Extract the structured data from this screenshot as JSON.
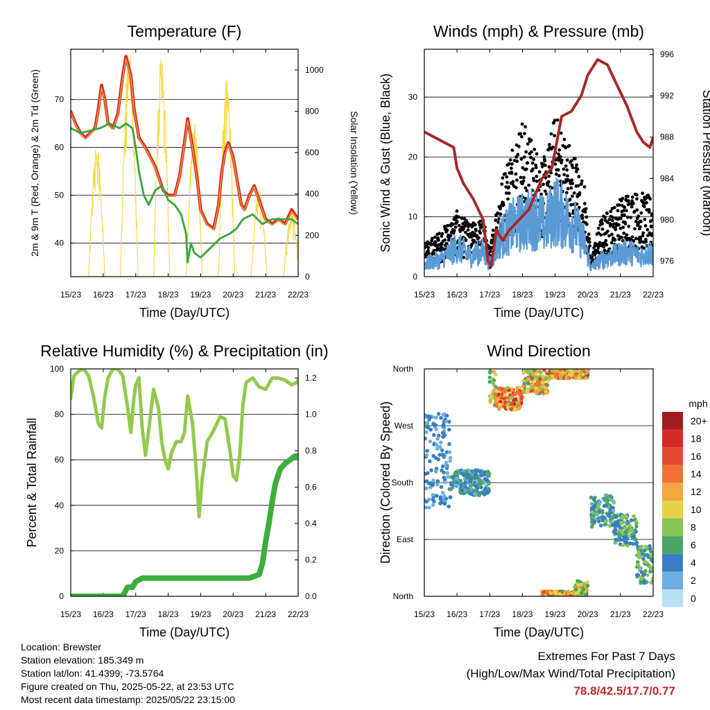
{
  "chart_data": [
    {
      "id": "temperature",
      "type": "line",
      "title": "Temperature (F)",
      "xlabel": "Time (Day/UTC)",
      "ylabel_left": "2m & 9m T (Red, Orange) & 2m Td (Green)",
      "ylabel_right": "Solar Insolation (Yellow)",
      "x_ticks": [
        "15/23",
        "16/23",
        "17/23",
        "18/23",
        "19/23",
        "20/23",
        "21/23",
        "22/23"
      ],
      "xlim": [
        0,
        7
      ],
      "ylim_left": [
        33,
        80.5
      ],
      "yticks_left": [
        40,
        50,
        60,
        70
      ],
      "ylim_right": [
        0,
        1100
      ],
      "yticks_right": [
        0,
        200,
        400,
        600,
        800,
        1000
      ],
      "grid": "horizontal",
      "series": [
        {
          "axis": "left",
          "color": "#d42a24",
          "width": 4.5,
          "x": [
            0,
            0.15,
            0.3,
            0.45,
            0.6,
            0.75,
            0.85,
            0.95,
            1.05,
            1.15,
            1.3,
            1.45,
            1.6,
            1.7,
            1.85,
            1.95,
            2.1,
            2.3,
            2.45,
            2.6,
            2.75,
            2.85,
            3.0,
            3.2,
            3.35,
            3.5,
            3.6,
            3.75,
            3.9,
            4.0,
            4.2,
            4.4,
            4.55,
            4.65,
            4.75,
            4.85,
            5.0,
            5.15,
            5.25,
            5.35,
            5.5,
            5.65,
            5.8,
            6.0,
            6.2,
            6.4,
            6.6,
            6.8,
            7.0
          ],
          "y": [
            67.5,
            65,
            63,
            62,
            63,
            64,
            68,
            73,
            70,
            65,
            64,
            67,
            75,
            79,
            75,
            68,
            62,
            60,
            58,
            56,
            53,
            51,
            50,
            50,
            54,
            61,
            66,
            60,
            53,
            47,
            44,
            43,
            48,
            55,
            59,
            61,
            58,
            52,
            48,
            47,
            50,
            52,
            49,
            45,
            44,
            45,
            44,
            47,
            45
          ]
        },
        {
          "axis": "left",
          "color": "#f39c35",
          "width": 1.5,
          "x": [
            0,
            0.15,
            0.3,
            0.45,
            0.6,
            0.75,
            0.85,
            0.95,
            1.05,
            1.15,
            1.3,
            1.45,
            1.6,
            1.7,
            1.85,
            1.95,
            2.1,
            2.3,
            2.45,
            2.6,
            2.75,
            2.85,
            3.0,
            3.2,
            3.35,
            3.5,
            3.6,
            3.75,
            3.9,
            4.0,
            4.2,
            4.4,
            4.55,
            4.65,
            4.75,
            4.85,
            5.0,
            5.15,
            5.25,
            5.35,
            5.5,
            5.65,
            5.8,
            6.0,
            6.2,
            6.4,
            6.6,
            6.8,
            7.0
          ],
          "y": [
            67.3,
            64.8,
            62.8,
            61.8,
            62.8,
            63.8,
            67.6,
            72.5,
            69.7,
            64.8,
            63.8,
            66.7,
            74.5,
            78.5,
            74.7,
            67.8,
            61.8,
            59.8,
            57.8,
            55.8,
            52.8,
            50.8,
            49.8,
            49.8,
            53.8,
            60.6,
            65.6,
            59.8,
            52.8,
            46.8,
            43.8,
            42.8,
            47.8,
            54.7,
            58.6,
            60.6,
            57.8,
            51.8,
            47.8,
            46.8,
            49.8,
            51.8,
            48.8,
            44.8,
            43.8,
            44.8,
            43.8,
            46.6,
            44.8
          ]
        },
        {
          "axis": "left",
          "color": "#3ca53c",
          "width": 3,
          "dashed": true,
          "x": [
            0,
            0.3,
            0.6,
            0.9,
            1.2,
            1.5,
            1.7,
            1.9,
            2.0,
            2.1,
            2.25,
            2.4,
            2.6,
            2.8,
            3.0,
            3.2,
            3.4,
            3.55,
            3.6,
            3.65,
            3.7,
            3.8,
            4.0,
            4.3,
            4.6,
            4.9,
            5.1,
            5.3,
            5.6,
            5.9,
            6.2,
            6.5,
            6.8,
            7.0
          ],
          "y": [
            64,
            63,
            63.5,
            64,
            65,
            64,
            65,
            64,
            60,
            55,
            50,
            48,
            51,
            52,
            49,
            48,
            46,
            42,
            36,
            38,
            40,
            38,
            37,
            39,
            41,
            42,
            43,
            45,
            46,
            44,
            45,
            45,
            45,
            44
          ]
        }
      ],
      "solar_days": [
        {
          "center": 0.8,
          "width": 0.5,
          "peak": 640
        },
        {
          "center": 1.8,
          "width": 0.55,
          "peak": 1090
        },
        {
          "center": 2.8,
          "width": 0.5,
          "peak": 1100
        },
        {
          "center": 3.8,
          "width": 0.5,
          "peak": 750
        },
        {
          "center": 4.8,
          "width": 0.5,
          "peak": 1000
        },
        {
          "center": 5.8,
          "width": 0.5,
          "peak": 420
        },
        {
          "center": 6.8,
          "width": 0.5,
          "peak": 320
        }
      ],
      "solar_color": "#f5d949"
    },
    {
      "id": "winds",
      "type": "scatter",
      "title": "Winds (mph) & Pressure (mb)",
      "xlabel": "Time (Day/UTC)",
      "ylabel_left": "Sonic Wind & Gust (Blue, Black)",
      "ylabel_right": "Station Pressure (Maroon)",
      "x_ticks": [
        "15/23",
        "16/23",
        "17/23",
        "18/23",
        "19/23",
        "20/23",
        "21/23",
        "22/23"
      ],
      "xlim": [
        0,
        7
      ],
      "ylim_left": [
        0,
        38
      ],
      "yticks_left": [
        0,
        10,
        20,
        30
      ],
      "ylim_right": [
        974.5,
        996.5
      ],
      "yticks_right": [
        976,
        980,
        984,
        988,
        992,
        996
      ],
      "grid": "horizontal",
      "wind_envelope": {
        "x": [
          0,
          0.5,
          1.0,
          1.4,
          1.8,
          2.0,
          2.3,
          2.7,
          3.0,
          3.4,
          3.7,
          4.0,
          4.3,
          4.6,
          4.9,
          5.1,
          5.4,
          5.8,
          6.2,
          6.6,
          7.0
        ],
        "y": [
          3,
          4,
          7,
          5,
          6,
          3,
          9,
          12,
          13,
          14,
          12,
          16,
          14,
          12,
          8,
          2,
          4,
          5,
          6,
          5,
          6
        ],
        "color": "#5b9bd5"
      },
      "gust_envelope": {
        "x": [
          0,
          0.5,
          1.0,
          1.4,
          1.8,
          2.0,
          2.3,
          2.7,
          3.0,
          3.4,
          3.7,
          4.0,
          4.3,
          4.6,
          4.9,
          5.1,
          5.4,
          5.8,
          6.2,
          6.6,
          7.0
        ],
        "y": [
          5,
          7,
          10,
          8,
          9,
          4,
          14,
          21,
          24,
          20,
          18,
          25,
          22,
          19,
          14,
          3,
          9,
          11,
          13,
          13,
          12
        ],
        "color": "#000000"
      },
      "pressure": {
        "x": [
          0,
          0.3,
          0.6,
          0.9,
          1.0,
          1.2,
          1.5,
          1.8,
          1.95,
          2.05,
          2.2,
          2.4,
          2.6,
          2.9,
          3.2,
          3.6,
          3.9,
          4.2,
          4.5,
          4.8,
          5.0,
          5.3,
          5.6,
          5.9,
          6.2,
          6.5,
          6.7,
          6.9,
          7.0
        ],
        "y": [
          988.5,
          988,
          987.5,
          987,
          985,
          983.5,
          982,
          980,
          976,
          975.5,
          979,
          978,
          979,
          980,
          981,
          984,
          985,
          990,
          990.5,
          992,
          994,
          995.5,
          995,
          993,
          991,
          988.5,
          987.5,
          987,
          988
        ],
        "color": "#a52a2a"
      }
    },
    {
      "id": "humidity",
      "type": "line",
      "title": "Relative Humidity (%) & Precipitation (in)",
      "xlabel": "Time (Day/UTC)",
      "ylabel_left": "Percent & Total Rainfall",
      "x_ticks": [
        "15/23",
        "16/23",
        "17/23",
        "18/23",
        "19/23",
        "20/23",
        "21/23",
        "22/23"
      ],
      "xlim": [
        0,
        7
      ],
      "ylim_left": [
        0,
        100
      ],
      "yticks_left": [
        0,
        20,
        40,
        60,
        80,
        100
      ],
      "ylim_right": [
        0,
        1.25
      ],
      "yticks_right": [
        0.0,
        0.2,
        0.4,
        0.6,
        0.8,
        1.0,
        1.2
      ],
      "grid": "horizontal",
      "series": [
        {
          "name": "",
          "axis": "left",
          "color": "#93c94f",
          "width": 5,
          "x": [
            0,
            0.1,
            0.25,
            0.4,
            0.55,
            0.7,
            0.85,
            0.95,
            1.05,
            1.15,
            1.3,
            1.45,
            1.6,
            1.75,
            1.85,
            1.95,
            2.0,
            2.1,
            2.2,
            2.3,
            2.4,
            2.55,
            2.7,
            2.8,
            2.9,
            3.0,
            3.1,
            3.25,
            3.4,
            3.5,
            3.6,
            3.75,
            3.85,
            3.95,
            4.05,
            4.2,
            4.4,
            4.6,
            4.75,
            4.9,
            5.0,
            5.1,
            5.2,
            5.3,
            5.4,
            5.6,
            5.8,
            6.0,
            6.2,
            6.4,
            6.6,
            6.8,
            6.95,
            7.0
          ],
          "y": [
            87,
            97,
            99,
            100,
            97,
            88,
            76,
            74,
            88,
            96,
            100,
            100,
            97,
            83,
            72,
            88,
            93,
            96,
            74,
            62,
            73,
            91,
            83,
            68,
            60,
            56,
            63,
            68,
            68,
            72,
            88,
            76,
            58,
            35,
            52,
            68,
            73,
            79,
            78,
            64,
            53,
            51,
            62,
            84,
            94,
            96,
            92,
            91,
            96,
            96,
            95,
            93,
            94,
            95
          ]
        },
        {
          "name": "",
          "axis": "right",
          "color": "#3cae3c",
          "width": 8,
          "x": [
            0,
            0.5,
            1.0,
            1.6,
            1.75,
            1.9,
            2.0,
            2.2,
            2.5,
            3.0,
            3.5,
            4.0,
            4.5,
            5.0,
            5.5,
            5.8,
            5.9,
            6.0,
            6.1,
            6.2,
            6.3,
            6.45,
            6.6,
            6.75,
            6.9,
            7.0
          ],
          "y": [
            0,
            0,
            0,
            0,
            0.05,
            0.05,
            0.08,
            0.1,
            0.1,
            0.1,
            0.1,
            0.1,
            0.1,
            0.1,
            0.1,
            0.12,
            0.18,
            0.3,
            0.4,
            0.52,
            0.62,
            0.7,
            0.73,
            0.75,
            0.77,
            0.77
          ]
        }
      ]
    },
    {
      "id": "direction",
      "type": "scatter",
      "title": "Wind Direction",
      "xlabel": "Time (Day/UTC)",
      "ylabel_left": "Direction (Colored By Speed)",
      "x_ticks": [
        "15/23",
        "16/23",
        "17/23",
        "18/23",
        "19/23",
        "20/23",
        "21/23",
        "22/23"
      ],
      "xlim": [
        0,
        7
      ],
      "ylim_left": [
        0,
        360
      ],
      "yticks_labels": [
        "North",
        "East",
        "South",
        "West",
        "North"
      ],
      "yticks_values": [
        0,
        90,
        180,
        270,
        360
      ],
      "grid": "horizontal",
      "clusters": [
        {
          "x0": 0.0,
          "x1": 0.8,
          "ymin": 140,
          "ymax": 290,
          "smin": 1,
          "smax": 5
        },
        {
          "x0": 0.8,
          "x1": 2.0,
          "ymin": 160,
          "ymax": 200,
          "smin": 2,
          "smax": 7
        },
        {
          "x0": 2.0,
          "x1": 2.2,
          "ymin": 300,
          "ymax": 360,
          "smin": 6,
          "smax": 12
        },
        {
          "x0": 2.2,
          "x1": 3.0,
          "ymin": 295,
          "ymax": 330,
          "smin": 8,
          "smax": 18
        },
        {
          "x0": 3.0,
          "x1": 3.8,
          "ymin": 320,
          "ymax": 360,
          "smin": 6,
          "smax": 16
        },
        {
          "x0": 3.8,
          "x1": 5.0,
          "ymin": 345,
          "ymax": 360,
          "smin": 7,
          "smax": 18
        },
        {
          "x0": 3.6,
          "x1": 4.6,
          "ymin": 0,
          "ymax": 8,
          "smin": 6,
          "smax": 16
        },
        {
          "x0": 4.6,
          "x1": 5.0,
          "ymin": 0,
          "ymax": 25,
          "smin": 5,
          "smax": 12
        },
        {
          "x0": 5.1,
          "x1": 5.8,
          "ymin": 110,
          "ymax": 160,
          "smin": 2,
          "smax": 8
        },
        {
          "x0": 5.8,
          "x1": 6.5,
          "ymin": 80,
          "ymax": 130,
          "smin": 3,
          "smax": 8
        },
        {
          "x0": 6.5,
          "x1": 7.0,
          "ymin": 20,
          "ymax": 80,
          "smin": 3,
          "smax": 9
        }
      ],
      "colorbar": {
        "title": "mph",
        "labels": [
          "20+",
          "18",
          "16",
          "14",
          "12",
          "10",
          "8",
          "6",
          "4",
          "2",
          "0"
        ],
        "colors": [
          "#a11c1c",
          "#d42a24",
          "#e44a2e",
          "#f07133",
          "#f4a640",
          "#e6d245",
          "#88c655",
          "#4aa565",
          "#3a7fc2",
          "#6faedf",
          "#b8e0f5"
        ]
      }
    }
  ],
  "info": {
    "location": "Location: Brewster",
    "elevation": "Station elevation: 185.349 m",
    "latlon": "Station lat/lon: 41.4399; -73.5764",
    "created": "Figure created on Thu, 2025-05-22, at 23:53 UTC",
    "recent": "Most recent data timestamp: 2025/05/22 23:15:00"
  },
  "extremes": {
    "title": "Extremes For Past 7 Days",
    "subtitle": "(High/Low/Max Wind/Total Precipitation)",
    "values": "78.8/42.5/17.7/0.77"
  }
}
